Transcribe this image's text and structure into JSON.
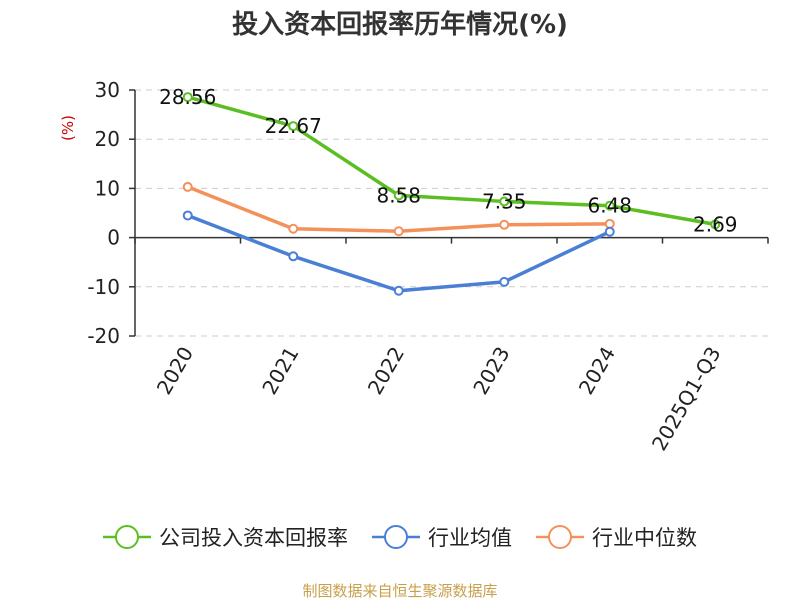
{
  "chart_data": {
    "type": "line",
    "title": "投入资本回报率历年情况(%)",
    "ylabel": "(%)",
    "categories": [
      "2020",
      "2021",
      "2022",
      "2023",
      "2024",
      "2025Q1-Q3"
    ],
    "ylim": [
      -20,
      30
    ],
    "yticks": [
      30,
      20,
      10,
      0,
      -10,
      -20
    ],
    "grid": true,
    "legend_position": "bottom",
    "series": [
      {
        "name": "公司投入资本回报率",
        "color": "#5bbf21",
        "values": [
          28.56,
          22.67,
          8.58,
          7.35,
          6.48,
          2.69
        ],
        "labels": [
          "28.56",
          "22.67",
          "8.58",
          "7.35",
          "6.48",
          "2.69"
        ],
        "show_labels": true
      },
      {
        "name": "行业均值",
        "color": "#4a7fd6",
        "values": [
          4.5,
          -3.8,
          -10.8,
          -9.0,
          1.2,
          null
        ],
        "show_labels": false
      },
      {
        "name": "行业中位数",
        "color": "#f4915b",
        "values": [
          10.3,
          1.8,
          1.3,
          2.6,
          2.8,
          null
        ],
        "show_labels": false
      }
    ]
  },
  "source_text": "制图数据来自恒生聚源数据库",
  "colors": {
    "unit_label": "#cc0000",
    "source_text": "#c8a04a"
  }
}
